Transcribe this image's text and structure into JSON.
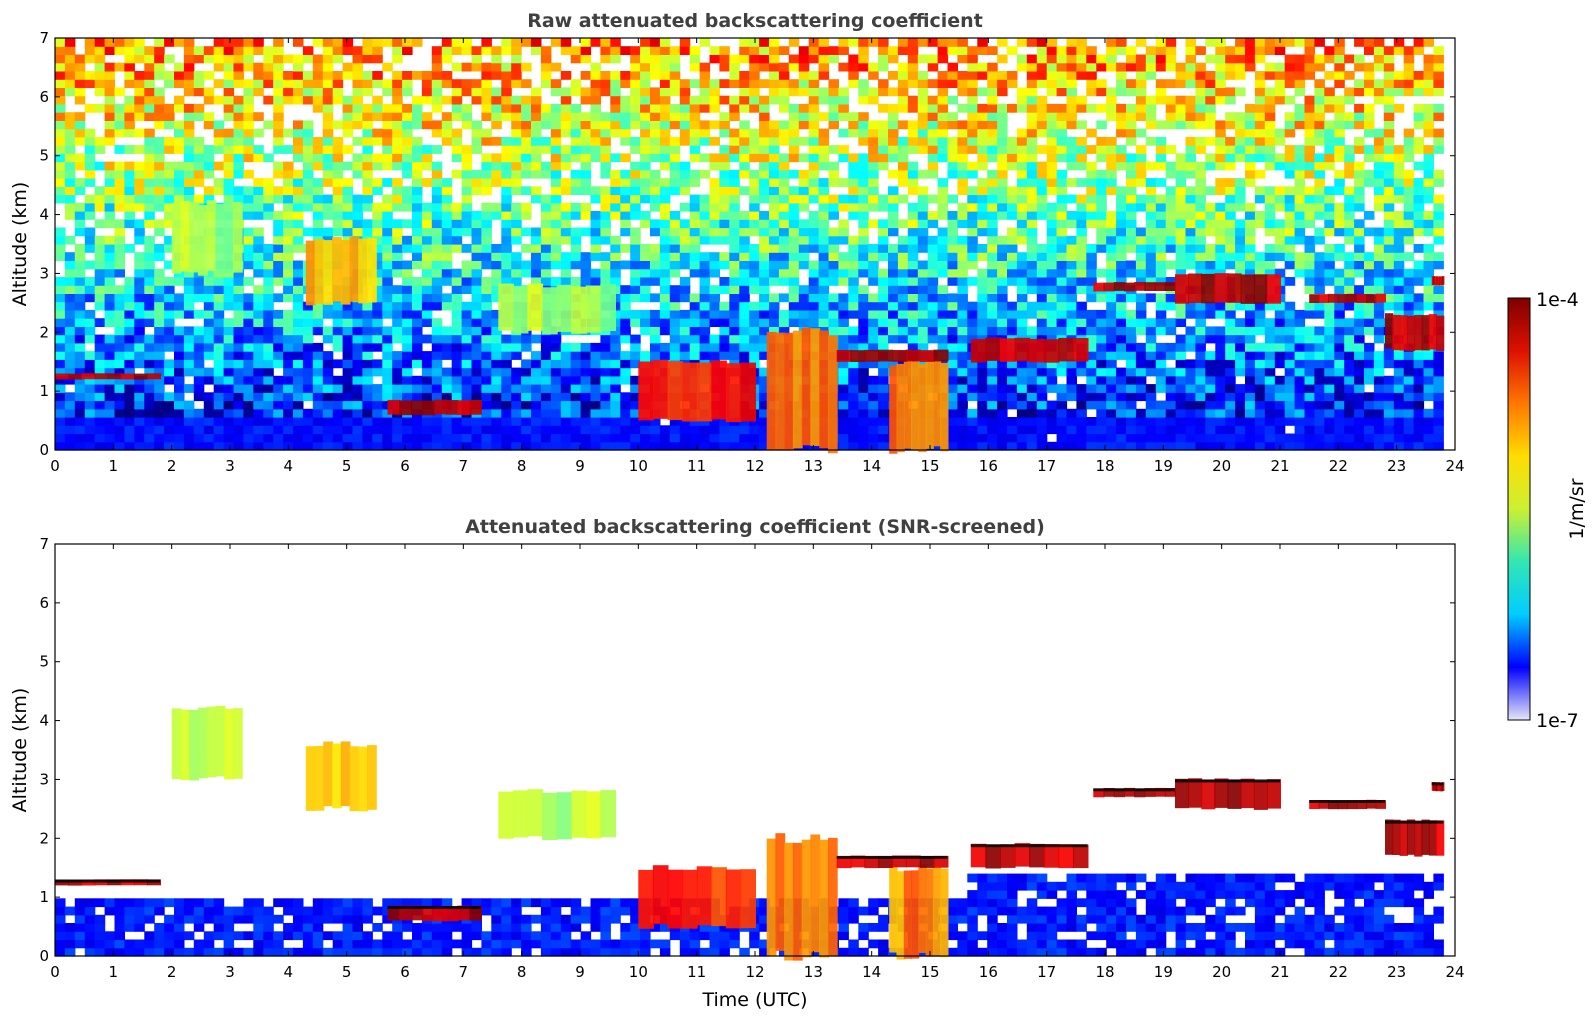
{
  "chart_data": [
    {
      "type": "heatmap",
      "title": "Raw attenuated backscattering coefficient",
      "xlabel": "",
      "ylabel": "Altitude (km)",
      "xlim": [
        0,
        24
      ],
      "ylim": [
        0,
        7
      ],
      "xticks": [
        "0",
        "1",
        "2",
        "3",
        "4",
        "5",
        "6",
        "7",
        "8",
        "9",
        "10",
        "11",
        "12",
        "13",
        "14",
        "15",
        "16",
        "17",
        "18",
        "19",
        "20",
        "21",
        "22",
        "23",
        "24"
      ],
      "yticks": [
        "0",
        "1",
        "2",
        "3",
        "4",
        "5",
        "6",
        "7"
      ],
      "data_extent_x": [
        0,
        23.8
      ],
      "noise": "high",
      "features": [
        {
          "x": [
            0.0,
            1.8
          ],
          "y": [
            1.2,
            1.3
          ],
          "level": 1.0
        },
        {
          "x": [
            5.7,
            7.3
          ],
          "y": [
            0.6,
            0.85
          ],
          "level": 1.0
        },
        {
          "x": [
            2.0,
            3.2
          ],
          "y": [
            3.0,
            4.2
          ],
          "level": 0.6
        },
        {
          "x": [
            4.3,
            5.5
          ],
          "y": [
            2.5,
            3.6
          ],
          "level": 0.75
        },
        {
          "x": [
            7.6,
            9.6
          ],
          "y": [
            2.0,
            2.8
          ],
          "level": 0.6
        },
        {
          "x": [
            10.0,
            12.0
          ],
          "y": [
            0.5,
            1.5
          ],
          "level": 0.9
        },
        {
          "x": [
            12.2,
            13.4
          ],
          "y": [
            0.0,
            2.0
          ],
          "level": 0.8
        },
        {
          "x": [
            14.3,
            15.3
          ],
          "y": [
            0.0,
            1.5
          ],
          "level": 0.8
        },
        {
          "x": [
            13.4,
            15.3
          ],
          "y": [
            1.5,
            1.7
          ],
          "level": 1.0
        },
        {
          "x": [
            15.7,
            17.7
          ],
          "y": [
            1.5,
            1.9
          ],
          "level": 1.0
        },
        {
          "x": [
            17.8,
            19.2
          ],
          "y": [
            2.7,
            2.85
          ],
          "level": 1.0
        },
        {
          "x": [
            19.2,
            21.0
          ],
          "y": [
            2.5,
            3.0
          ],
          "level": 1.0
        },
        {
          "x": [
            21.5,
            22.8
          ],
          "y": [
            2.5,
            2.65
          ],
          "level": 1.0
        },
        {
          "x": [
            22.8,
            23.8
          ],
          "y": [
            1.7,
            2.3
          ],
          "level": 1.0
        },
        {
          "x": [
            23.6,
            23.8
          ],
          "y": [
            2.8,
            2.95
          ],
          "level": 1.0
        }
      ]
    },
    {
      "type": "heatmap",
      "title": "Attenuated backscattering coefficient (SNR-screened)",
      "xlabel": "Time (UTC)",
      "ylabel": "Altitude (km)",
      "xlim": [
        0,
        24
      ],
      "ylim": [
        0,
        7
      ],
      "xticks": [
        "0",
        "1",
        "2",
        "3",
        "4",
        "5",
        "6",
        "7",
        "8",
        "9",
        "10",
        "11",
        "12",
        "13",
        "14",
        "15",
        "16",
        "17",
        "18",
        "19",
        "20",
        "21",
        "22",
        "23",
        "24"
      ],
      "yticks": [
        "0",
        "1",
        "2",
        "3",
        "4",
        "5",
        "6",
        "7"
      ],
      "data_extent_x": [
        0,
        23.8
      ],
      "noise": "screened",
      "features": [
        {
          "x": [
            0.0,
            1.8
          ],
          "y": [
            1.2,
            1.3
          ],
          "level": 1.0
        },
        {
          "x": [
            5.7,
            7.3
          ],
          "y": [
            0.6,
            0.85
          ],
          "level": 1.0
        },
        {
          "x": [
            2.0,
            3.2
          ],
          "y": [
            3.0,
            4.2
          ],
          "level": 0.6
        },
        {
          "x": [
            4.3,
            5.5
          ],
          "y": [
            2.5,
            3.6
          ],
          "level": 0.75
        },
        {
          "x": [
            7.6,
            9.6
          ],
          "y": [
            2.0,
            2.8
          ],
          "level": 0.6
        },
        {
          "x": [
            10.0,
            12.0
          ],
          "y": [
            0.5,
            1.5
          ],
          "level": 0.9
        },
        {
          "x": [
            12.2,
            13.4
          ],
          "y": [
            0.0,
            2.0
          ],
          "level": 0.8
        },
        {
          "x": [
            14.3,
            15.3
          ],
          "y": [
            0.0,
            1.5
          ],
          "level": 0.8
        },
        {
          "x": [
            13.4,
            15.3
          ],
          "y": [
            1.5,
            1.7
          ],
          "level": 1.0
        },
        {
          "x": [
            15.7,
            17.7
          ],
          "y": [
            1.5,
            1.9
          ],
          "level": 1.0
        },
        {
          "x": [
            17.8,
            19.2
          ],
          "y": [
            2.7,
            2.85
          ],
          "level": 1.0
        },
        {
          "x": [
            19.2,
            21.0
          ],
          "y": [
            2.5,
            3.0
          ],
          "level": 1.0
        },
        {
          "x": [
            21.5,
            22.8
          ],
          "y": [
            2.5,
            2.65
          ],
          "level": 1.0
        },
        {
          "x": [
            22.8,
            23.8
          ],
          "y": [
            1.7,
            2.3
          ],
          "level": 1.0
        },
        {
          "x": [
            23.6,
            23.8
          ],
          "y": [
            2.8,
            2.95
          ],
          "level": 1.0
        }
      ]
    }
  ],
  "colorbar": {
    "label": "1/m/sr",
    "max_label": "1e-4",
    "min_label": "1e-7",
    "colormap": "jet",
    "stops": [
      "#e6e6f7",
      "#0000ff",
      "#00ccff",
      "#33e6b3",
      "#ccf033",
      "#ffdd00",
      "#ff7700",
      "#dd1100",
      "#7f0000"
    ]
  },
  "colors": {
    "frame": "#000000",
    "title": "#404040",
    "background": "#ffffff"
  }
}
